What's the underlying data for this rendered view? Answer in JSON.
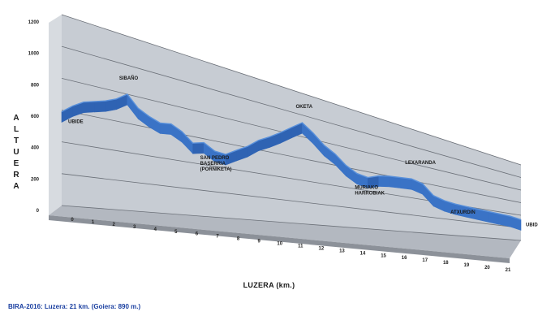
{
  "chart_data": {
    "type": "area",
    "render": "3d-ribbon",
    "title": "",
    "ylabel": "ALTUERA",
    "xlabel": "LUZERA (km.)",
    "ylim": [
      0,
      1200
    ],
    "yticks": [
      0,
      200,
      400,
      600,
      800,
      1000,
      1200
    ],
    "xticks": [
      "0",
      "1",
      "2",
      "3",
      "4",
      "5",
      "6",
      "7",
      "8",
      "9",
      "10",
      "11",
      "12",
      "13",
      "14",
      "15",
      "16",
      "17",
      "18",
      "19",
      "20",
      "21"
    ],
    "grid": true,
    "series_color": "#3a73c6",
    "wall_color": "#c7ccd3",
    "floor_color": "#b3b8c0",
    "series": [
      {
        "x": [
          0,
          0.5,
          1,
          1.5,
          2,
          2.5,
          3,
          3.5,
          4,
          4.5,
          5,
          5.5,
          6,
          6.5,
          7,
          7.5,
          8,
          8.5,
          9,
          9.5,
          10,
          10.5,
          11,
          11.5,
          12,
          12.5,
          13,
          13.5,
          14,
          14.5,
          15,
          15.5,
          16,
          16.5,
          17,
          17.5,
          18,
          18.5,
          19,
          19.5,
          20,
          20.5,
          21
        ],
        "y": [
          590,
          640,
          680,
          700,
          720,
          750,
          800,
          720,
          680,
          650,
          660,
          620,
          550,
          570,
          520,
          510,
          560,
          610,
          680,
          730,
          790,
          860,
          930,
          860,
          770,
          710,
          620,
          560,
          540,
          580,
          600,
          610,
          620,
          590,
          470,
          430,
          410,
          400,
          390,
          380,
          370,
          360,
          330
        ]
      }
    ],
    "annotations": [
      {
        "x": 0,
        "y": 590,
        "text": "UBIDE"
      },
      {
        "x": 3,
        "y": 800,
        "text": "SIBAÑO"
      },
      {
        "x": 7,
        "y": 520,
        "text": "SAN PEDRO\nBASERRIA\n(PORNIKETA)"
      },
      {
        "x": 11,
        "y": 930,
        "text": "OKETA"
      },
      {
        "x": 14,
        "y": 540,
        "text": "MURIAKO\nHARROBIAK"
      },
      {
        "x": 16,
        "y": 620,
        "text": "LEXARANDA"
      },
      {
        "x": 18,
        "y": 410,
        "text": "ATXURDIN"
      },
      {
        "x": 21,
        "y": 330,
        "text": "UBIDE"
      }
    ]
  },
  "caption": "BIRA-2016: Luzera: 21 km. (Goiera: 890 m.)"
}
